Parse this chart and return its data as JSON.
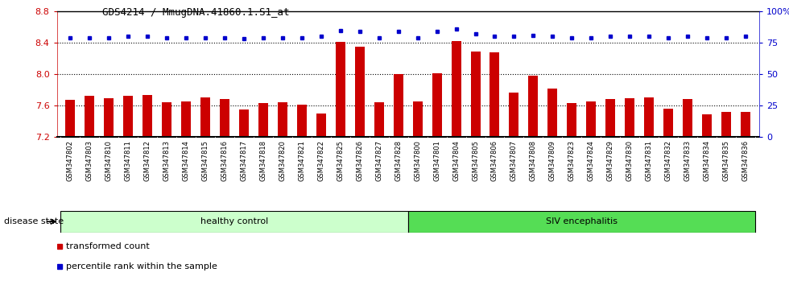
{
  "title": "GDS4214 / MmugDNA.41860.1.S1_at",
  "samples": [
    "GSM347802",
    "GSM347803",
    "GSM347810",
    "GSM347811",
    "GSM347812",
    "GSM347813",
    "GSM347814",
    "GSM347815",
    "GSM347816",
    "GSM347817",
    "GSM347818",
    "GSM347820",
    "GSM347821",
    "GSM347822",
    "GSM347825",
    "GSM347826",
    "GSM347827",
    "GSM347828",
    "GSM347800",
    "GSM347801",
    "GSM347804",
    "GSM347805",
    "GSM347806",
    "GSM347807",
    "GSM347808",
    "GSM347809",
    "GSM347823",
    "GSM347824",
    "GSM347829",
    "GSM347830",
    "GSM347831",
    "GSM347832",
    "GSM347833",
    "GSM347834",
    "GSM347835",
    "GSM347836"
  ],
  "bar_values": [
    7.67,
    7.72,
    7.69,
    7.72,
    7.73,
    7.64,
    7.65,
    7.7,
    7.68,
    7.55,
    7.63,
    7.64,
    7.61,
    7.5,
    8.41,
    8.35,
    7.64,
    8.0,
    7.65,
    8.01,
    8.42,
    8.29,
    8.28,
    7.76,
    7.98,
    7.82,
    7.63,
    7.65,
    7.68,
    7.69,
    7.7,
    7.56,
    7.68,
    7.49,
    7.52,
    7.52
  ],
  "percentile_values": [
    79,
    79,
    79,
    80,
    80,
    79,
    79,
    79,
    79,
    78,
    79,
    79,
    79,
    80,
    85,
    84,
    79,
    84,
    79,
    84,
    86,
    82,
    80,
    80,
    81,
    80,
    79,
    79,
    80,
    80,
    80,
    79,
    80,
    79,
    79,
    80
  ],
  "ylim_left": [
    7.2,
    8.8
  ],
  "ylim_right": [
    0,
    100
  ],
  "yticks_left": [
    7.2,
    7.6,
    8.0,
    8.4,
    8.8
  ],
  "yticks_right": [
    0,
    25,
    50,
    75,
    100
  ],
  "bar_color": "#CC0000",
  "dot_color": "#0000CC",
  "grid_color": "#000000",
  "healthy_count": 18,
  "healthy_label": "healthy control",
  "disease_label": "SIV encephalitis",
  "healthy_color": "#CCFFCC",
  "disease_color": "#55DD55",
  "xlabel_color": "#CC0000",
  "ylabel_right_color": "#0000CC",
  "legend_bar_label": "transformed count",
  "legend_dot_label": "percentile rank within the sample",
  "disease_state_label": "disease state",
  "background_color": "#FFFFFF",
  "tick_area_color": "#C8C8C8"
}
